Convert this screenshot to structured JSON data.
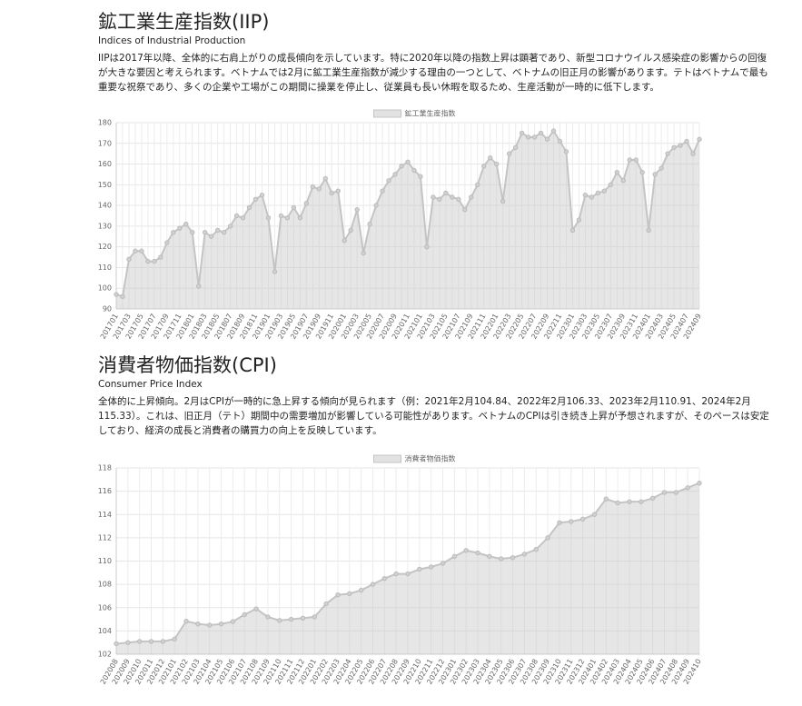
{
  "sections": [
    {
      "title": "鉱工業生産指数(IIP)",
      "subtitle": "Indices of Industrial Production",
      "description": "IIPは2017年以降、全体的に右肩上がりの成長傾向を示しています。特に2020年以降の指数上昇は顕著であり、新型コロナウイルス感染症の影響からの回復が大きな要因と考えられます。ベトナムでは2月に鉱工業生産指数が減少する理由の一つとして、ベトナムの旧正月の影響があります。テトはベトナムで最も重要な祝祭であり、多くの企業や工場がこの期間に操業を停止し、従業員も長い休暇を取るため、生産活動が一時的に低下します。"
    },
    {
      "title": "消費者物価指数(CPI)",
      "subtitle": "Consumer Price Index",
      "description": "全体的に上昇傾向。2月はCPIが一時的に急上昇する傾向が見られます（例：2021年2月104.84、2022年2月106.33、2023年2月110.91、2024年2月115.33）。これは、旧正月（テト）期間中の需要増加が影響している可能性があります。ベトナムのCPIは引き続き上昇が予想されますが、そのペースは安定しており、経済の成長と消費者の購買力の向上を反映しています。"
    }
  ],
  "chart_data": [
    {
      "type": "line",
      "grid": true,
      "fill": true,
      "categories": [
        "201701",
        null,
        "201703",
        null,
        "201705",
        null,
        "201707",
        null,
        "201709",
        null,
        "201711",
        null,
        "201801",
        null,
        "201803",
        null,
        "201805",
        null,
        "201807",
        null,
        "201809",
        null,
        "201811",
        null,
        "201901",
        null,
        "201903",
        null,
        "201905",
        null,
        "201907",
        null,
        "201909",
        null,
        "201911",
        null,
        "202001",
        null,
        "202003",
        null,
        "202005",
        null,
        "202007",
        null,
        "202009",
        null,
        "202011",
        null,
        "202101",
        null,
        "202103",
        null,
        "202105",
        null,
        "202107",
        null,
        "202109",
        null,
        "202111",
        null,
        "202201",
        null,
        "202203",
        null,
        "202205",
        null,
        "202207",
        null,
        "202209",
        null,
        "202211",
        null,
        "202301",
        null,
        "202303",
        null,
        "202305",
        null,
        "202307",
        null,
        "202309",
        null,
        "202311",
        null,
        "202401",
        null,
        "202403",
        null,
        "202405",
        null,
        "202407",
        null,
        "202409"
      ],
      "series": [
        {
          "name": "鉱工業生産指数",
          "color": "#c4c4c4",
          "values": [
            97,
            96,
            114,
            118,
            118,
            113,
            113,
            115,
            122,
            127,
            129,
            131,
            127,
            101,
            127,
            125,
            128,
            127,
            130,
            135,
            134,
            139,
            143,
            145,
            134,
            108,
            135,
            134,
            139,
            134,
            141,
            149,
            148,
            153,
            146,
            147,
            123,
            128,
            138,
            117,
            131,
            140,
            147,
            152,
            155,
            159,
            161,
            157,
            154,
            120,
            144,
            143,
            146,
            144,
            143,
            138,
            144,
            150,
            159,
            163,
            160,
            142,
            165,
            168,
            175,
            173,
            173,
            175,
            172,
            176,
            171,
            166,
            128,
            133,
            145,
            144,
            146,
            147,
            150,
            156,
            152,
            162,
            162,
            156,
            128,
            155,
            158,
            165,
            168,
            169,
            171,
            165,
            172
          ]
        }
      ],
      "ylim": [
        90,
        180
      ],
      "yticks": [
        90,
        100,
        110,
        120,
        130,
        140,
        150,
        160,
        170,
        180
      ]
    },
    {
      "type": "line",
      "grid": true,
      "fill": true,
      "categories": [
        "202008",
        "202009",
        "202010",
        "202011",
        "202012",
        "202101",
        "202102",
        "202103",
        "202104",
        "202105",
        "202106",
        "202107",
        "202108",
        "202109",
        "202110",
        "202111",
        "202112",
        "202201",
        "202202",
        "202203",
        "202204",
        "202205",
        "202206",
        "202207",
        "202208",
        "202209",
        "202210",
        "202211",
        "202212",
        "202301",
        "202302",
        "202303",
        "202304",
        "202305",
        "202306",
        "202307",
        "202308",
        "202309",
        "202310",
        "202311",
        "202312",
        "202401",
        "202402",
        "202403",
        "202404",
        "202405",
        "202406",
        "202407",
        "202408",
        "202409",
        "202410"
      ],
      "series": [
        {
          "name": "消費者物価指数",
          "color": "#c4c4c4",
          "values": [
            102.9,
            103.0,
            103.1,
            103.1,
            103.1,
            103.3,
            104.84,
            104.6,
            104.5,
            104.6,
            104.8,
            105.4,
            105.9,
            105.2,
            104.9,
            105.0,
            105.1,
            105.2,
            106.33,
            107.1,
            107.2,
            107.5,
            108.0,
            108.5,
            108.9,
            108.9,
            109.3,
            109.5,
            109.8,
            110.4,
            110.91,
            110.7,
            110.4,
            110.2,
            110.3,
            110.6,
            111.0,
            112.0,
            113.3,
            113.4,
            113.6,
            114.0,
            115.33,
            115.0,
            115.1,
            115.1,
            115.4,
            115.9,
            115.9,
            116.3,
            116.7
          ]
        }
      ],
      "ylim": [
        102,
        118
      ],
      "yticks": [
        102,
        104,
        106,
        108,
        110,
        112,
        114,
        116,
        118
      ]
    }
  ]
}
